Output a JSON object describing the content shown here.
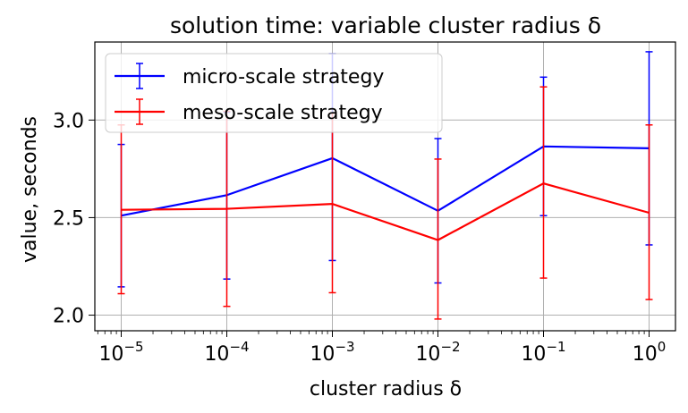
{
  "chart_data": {
    "type": "line",
    "title": "solution time: variable cluster radius δ",
    "xlabel": "cluster radius δ",
    "ylabel": "value, seconds",
    "x_scale": "log",
    "x": [
      1e-05,
      0.0001,
      0.001,
      0.01,
      0.1,
      1
    ],
    "x_tick_labels": [
      {
        "base": "10",
        "exp": "−5"
      },
      {
        "base": "10",
        "exp": "−4"
      },
      {
        "base": "10",
        "exp": "−3"
      },
      {
        "base": "10",
        "exp": "−2"
      },
      {
        "base": "10",
        "exp": "−1"
      },
      {
        "base": "10",
        "exp": "0"
      }
    ],
    "y_ticks": [
      "2.0",
      "2.5",
      "3.0"
    ],
    "ylim": [
      1.92,
      3.4
    ],
    "grid": true,
    "legend_position": "upper-left",
    "series": [
      {
        "name": "micro-scale strategy",
        "color": "#0000ff",
        "values": [
          2.51,
          2.615,
          2.805,
          2.535,
          2.865,
          2.855
        ],
        "err_low": [
          2.145,
          2.185,
          2.28,
          2.165,
          2.51,
          2.36
        ],
        "err_high": [
          2.875,
          3.04,
          3.34,
          2.905,
          3.22,
          3.35
        ]
      },
      {
        "name": "meso-scale strategy",
        "color": "#ff0000",
        "values": [
          2.54,
          2.545,
          2.57,
          2.385,
          2.675,
          2.525
        ],
        "err_low": [
          2.11,
          2.045,
          2.115,
          1.98,
          2.19,
          2.08
        ],
        "err_high": [
          2.975,
          3.045,
          3.035,
          2.8,
          3.17,
          2.975
        ]
      }
    ]
  }
}
